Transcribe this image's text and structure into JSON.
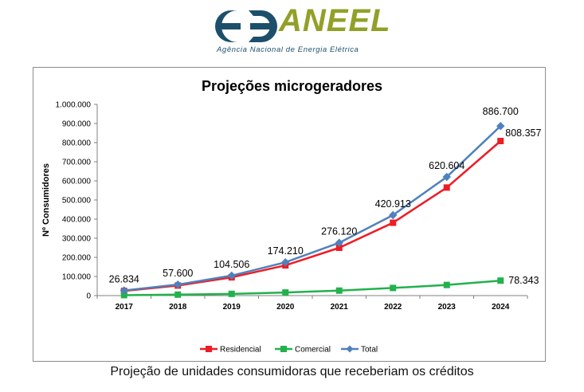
{
  "logo": {
    "name": "ANEEL",
    "subtitle": "Agência Nacional de Energia Elétrica",
    "colors": {
      "dark": "#1d4f6b",
      "green": "#93a028"
    }
  },
  "caption": "Projeção de unidades consumidoras que receberiam os créditos",
  "chart_data": {
    "type": "line",
    "title": "Projeções microgeradores",
    "xlabel": "",
    "ylabel": "Nº Consumidores",
    "ylim": [
      0,
      1000000
    ],
    "yticks": [
      "0",
      "100.000",
      "200.000",
      "300.000",
      "400.000",
      "500.000",
      "600.000",
      "700.000",
      "800.000",
      "900.000",
      "1.000.000"
    ],
    "categories": [
      "2017",
      "2018",
      "2019",
      "2020",
      "2021",
      "2022",
      "2023",
      "2024"
    ],
    "legend_position": "bottom",
    "series": [
      {
        "name": "Residencial",
        "color": "#ee1c25",
        "marker": "square",
        "values": [
          24500,
          52500,
          95500,
          158000,
          250000,
          381000,
          565000,
          808357
        ]
      },
      {
        "name": "Comercial",
        "color": "#22b14c",
        "marker": "square",
        "values": [
          2300,
          5100,
          9000,
          16200,
          26100,
          39900,
          55600,
          78343
        ]
      },
      {
        "name": "Total",
        "color": "#4f81bd",
        "marker": "diamond",
        "values": [
          26834,
          57600,
          104506,
          174210,
          276120,
          420913,
          620604,
          886700
        ]
      }
    ],
    "data_labels": [
      {
        "series": "Total",
        "index": 0,
        "text": "26.834"
      },
      {
        "series": "Total",
        "index": 1,
        "text": "57.600"
      },
      {
        "series": "Total",
        "index": 2,
        "text": "104.506"
      },
      {
        "series": "Total",
        "index": 3,
        "text": "174.210"
      },
      {
        "series": "Total",
        "index": 4,
        "text": "276.120"
      },
      {
        "series": "Total",
        "index": 5,
        "text": "420.913"
      },
      {
        "series": "Total",
        "index": 6,
        "text": "620.604"
      },
      {
        "series": "Total",
        "index": 7,
        "text": "886.700"
      },
      {
        "series": "Residencial",
        "index": 7,
        "text": "808.357"
      },
      {
        "series": "Comercial",
        "index": 7,
        "text": "78.343"
      }
    ]
  }
}
